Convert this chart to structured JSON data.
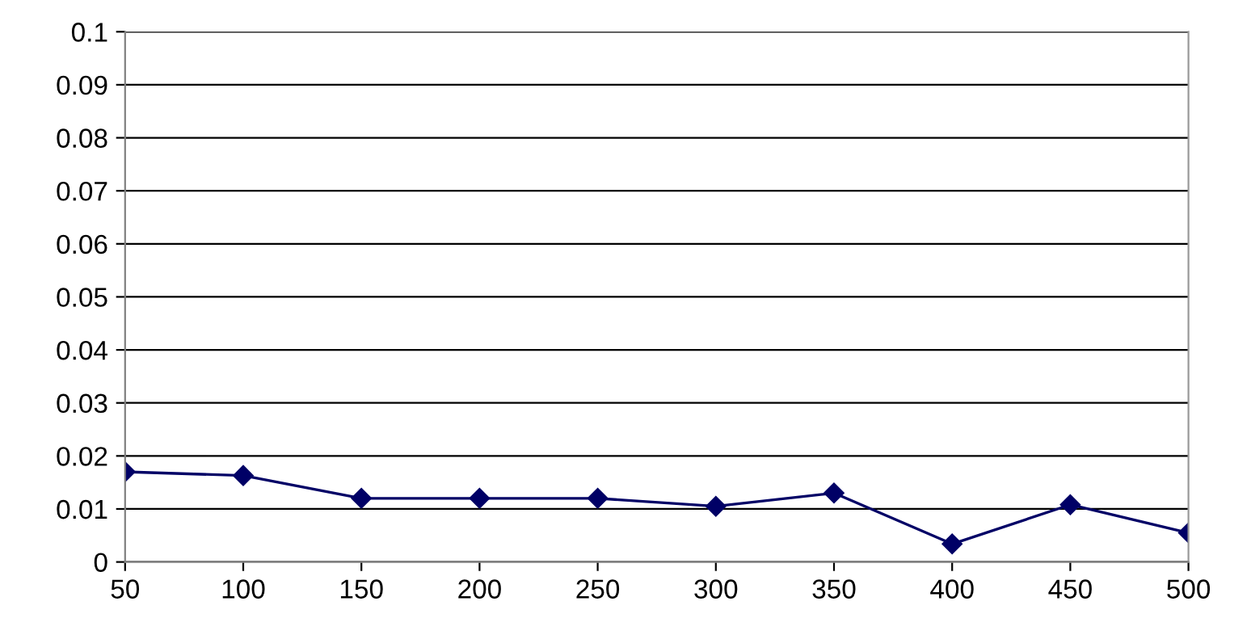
{
  "chart_data": {
    "type": "line",
    "categories": [
      "50",
      "100",
      "150",
      "200",
      "250",
      "300",
      "350",
      "400",
      "450",
      "500"
    ],
    "series": [
      {
        "color": "#000066",
        "values": [
          0.017,
          0.0163,
          0.012,
          0.012,
          0.012,
          0.0105,
          0.013,
          0.0034,
          0.0108,
          0.0055
        ]
      }
    ],
    "ylim": [
      0,
      0.1
    ],
    "yticks": [
      0,
      0.01,
      0.02,
      0.03,
      0.04,
      0.05,
      0.06,
      0.07,
      0.08,
      0.09,
      0.1
    ],
    "grid": "y",
    "marker": "diamond",
    "line_style": "solid",
    "legend": false
  }
}
